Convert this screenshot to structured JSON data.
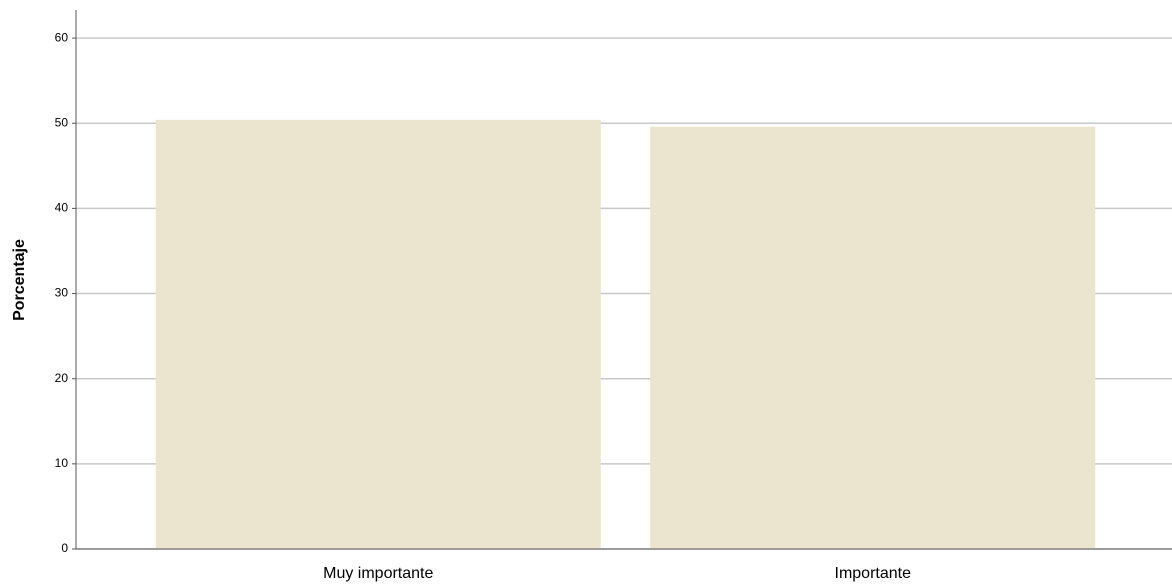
{
  "chart_data": {
    "type": "bar",
    "y_label": "Porcentaje",
    "categories": [
      "Muy importante",
      "Importante"
    ],
    "values": [
      50.4,
      49.6
    ],
    "color": "#ebe4cf",
    "ylim": [
      0,
      63.3
    ],
    "yticks": [
      0,
      10,
      20,
      30,
      40,
      50,
      60
    ],
    "grid": true
  }
}
